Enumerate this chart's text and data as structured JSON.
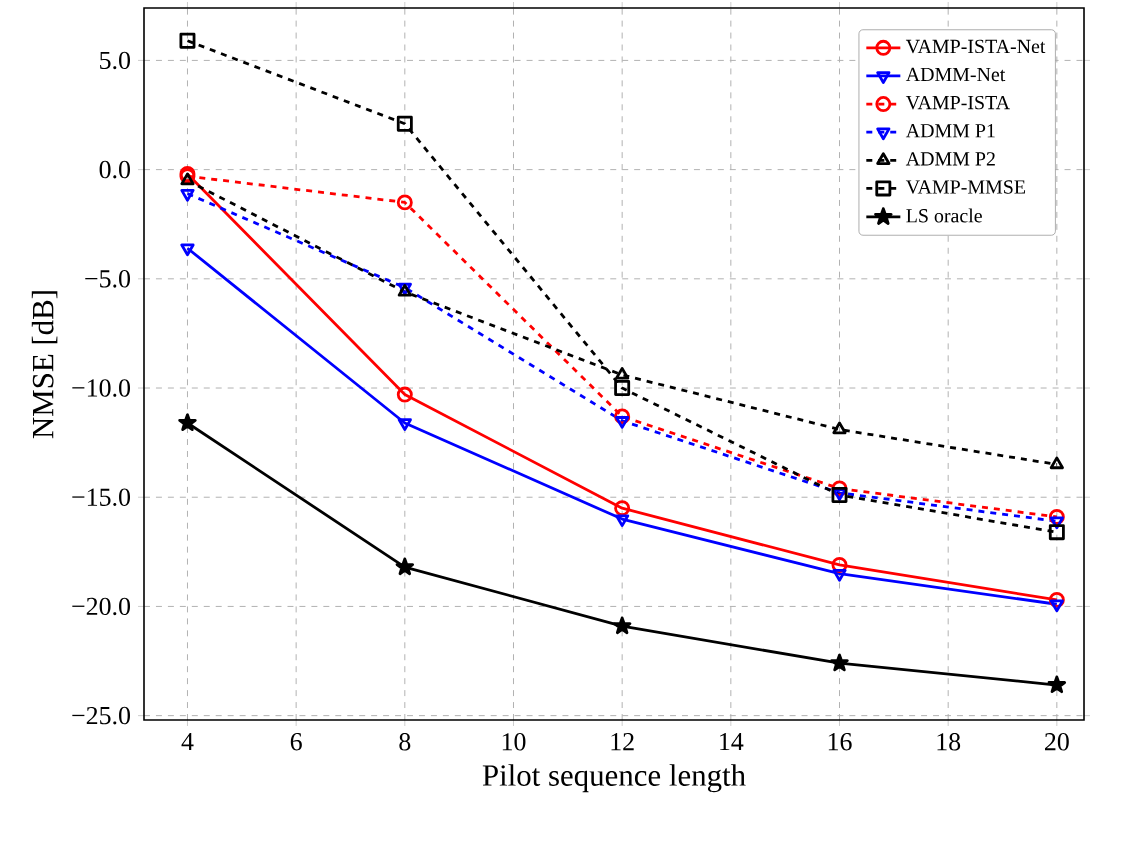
{
  "chart_data": {
    "type": "line",
    "xlabel": "Pilot sequence length",
    "ylabel": "NMSE [dB]",
    "x": [
      4,
      8,
      12,
      16,
      20
    ],
    "series": [
      {
        "name": "VAMP-ISTA-Net",
        "color": "#ff0000",
        "marker": "circle",
        "line_style": "solid",
        "values": [
          -0.2,
          -10.3,
          -15.5,
          -18.1,
          -19.7
        ]
      },
      {
        "name": "ADMM-Net",
        "color": "#0000ff",
        "marker": "triangle",
        "line_style": "solid",
        "values": [
          -3.6,
          -11.6,
          -16.0,
          -18.5,
          -19.9
        ]
      },
      {
        "name": "VAMP-ISTA",
        "color": "#ff0000",
        "marker": "circle",
        "line_style": "dashed",
        "values": [
          -0.3,
          -1.5,
          -11.3,
          -14.6,
          -15.9
        ]
      },
      {
        "name": "ADMM P1",
        "color": "#0000ff",
        "marker": "triangle",
        "line_style": "dashed",
        "values": [
          -1.1,
          -5.4,
          -11.5,
          -14.8,
          -16.1
        ]
      },
      {
        "name": "ADMM P2",
        "color": "#000000",
        "marker": "triangle",
        "line_style": "dashed",
        "values": [
          -0.5,
          -5.6,
          -9.4,
          -11.9,
          -13.5
        ]
      },
      {
        "name": "VAMP-MMSE",
        "color": "#000000",
        "marker": "square",
        "line_style": "dashed",
        "values": [
          5.9,
          2.1,
          -10.0,
          -14.9,
          -16.6
        ]
      },
      {
        "name": "LS oracle",
        "color": "#000000",
        "marker": "star",
        "line_style": "solid",
        "values": [
          -11.6,
          -18.2,
          -20.9,
          -22.6,
          -23.6
        ]
      }
    ],
    "xlim": [
      3.2,
      20.5
    ],
    "ylim": [
      -25.2,
      7.4
    ],
    "xticks": [
      4,
      6,
      8,
      10,
      12,
      14,
      16,
      18,
      20
    ],
    "yticks": [
      {
        "value": 5,
        "label": "5.0"
      },
      {
        "value": 0,
        "label": "0.0"
      },
      {
        "value": -5,
        "label": "−5.0"
      },
      {
        "value": -10,
        "label": "−10.0"
      },
      {
        "value": -15,
        "label": "−15.0"
      },
      {
        "value": -20,
        "label": "−20.0"
      },
      {
        "value": -25,
        "label": "−25.0"
      }
    ],
    "grid": true,
    "legend": "top right"
  }
}
